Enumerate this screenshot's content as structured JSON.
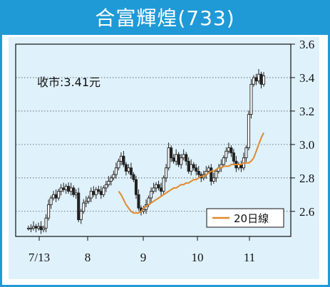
{
  "title": "合富輝煌(733)",
  "annotation": "收市:3.41元",
  "colors": {
    "frame": "#1f9ad6",
    "plot_bg": "#dff1fb",
    "ma_line": "#e08a2c",
    "candle": "#222222"
  },
  "chart_data": {
    "type": "line",
    "title": "合富輝煌(733)",
    "xlabel": "",
    "ylabel": "",
    "ylim": [
      2.45,
      3.6
    ],
    "x_ticks": [
      "7/13",
      "8",
      "9",
      "10",
      "11"
    ],
    "y_ticks": [
      "2.6",
      "2.8",
      "3.0",
      "3.2",
      "3.4",
      "3.6"
    ],
    "grid": "horizontal dotted",
    "legend_position": "bottom-right",
    "close_label": "收市:3.41元",
    "series": [
      {
        "name": "",
        "kind": "candlestick-closes",
        "values": [
          2.5,
          2.5,
          2.51,
          2.5,
          2.51,
          2.49,
          2.5,
          2.56,
          2.64,
          2.68,
          2.7,
          2.68,
          2.72,
          2.74,
          2.73,
          2.75,
          2.72,
          2.74,
          2.7,
          2.71,
          2.55,
          2.6,
          2.65,
          2.66,
          2.68,
          2.72,
          2.7,
          2.73,
          2.72,
          2.7,
          2.74,
          2.76,
          2.78,
          2.8,
          2.82,
          2.86,
          2.9,
          2.93,
          2.88,
          2.84,
          2.86,
          2.82,
          2.79,
          2.7,
          2.62,
          2.6,
          2.61,
          2.64,
          2.68,
          2.72,
          2.74,
          2.76,
          2.74,
          2.72,
          2.8,
          2.86,
          2.98,
          2.92,
          2.9,
          2.94,
          2.88,
          2.92,
          2.94,
          2.9,
          2.84,
          2.88,
          2.86,
          2.84,
          2.82,
          2.8,
          2.82,
          2.84,
          2.86,
          2.78,
          2.8,
          2.84,
          2.86,
          2.88,
          2.92,
          2.96,
          2.98,
          2.95,
          2.9,
          2.86,
          2.88,
          2.86,
          2.92,
          2.98,
          3.18,
          3.36,
          3.4,
          3.38,
          3.42,
          3.36,
          3.41
        ]
      },
      {
        "name": "20日線",
        "kind": "moving-average",
        "values": [
          2.72,
          2.7,
          2.67,
          2.64,
          2.62,
          2.6,
          2.59,
          2.59,
          2.59,
          2.6,
          2.62,
          2.63,
          2.64,
          2.65,
          2.66,
          2.67,
          2.68,
          2.69,
          2.7,
          2.71,
          2.72,
          2.73,
          2.74,
          2.74,
          2.75,
          2.76,
          2.76,
          2.77,
          2.77,
          2.78,
          2.79,
          2.79,
          2.8,
          2.81,
          2.81,
          2.82,
          2.83,
          2.84,
          2.84,
          2.85,
          2.86,
          2.86,
          2.87,
          2.87,
          2.87,
          2.88,
          2.88,
          2.88,
          2.88,
          2.88,
          2.89,
          2.89,
          2.89,
          2.9,
          2.92,
          2.96,
          3.0,
          3.04,
          3.07
        ]
      }
    ]
  }
}
